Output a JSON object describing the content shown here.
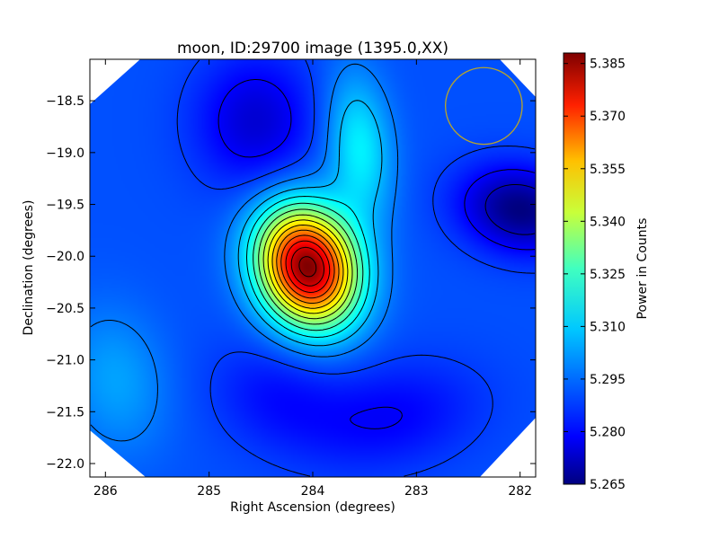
{
  "chart_data": {
    "type": "heatmap",
    "title": "moon, ID:29700 image (1395.0,XX)",
    "xlabel": "Right Ascension (degrees)",
    "ylabel": "Declination (degrees)",
    "xlim": [
      286.15,
      281.85
    ],
    "ylim": [
      -22.13,
      -18.1
    ],
    "x_ticks": [
      286,
      285,
      284,
      283,
      282
    ],
    "x_tick_labels": [
      "286",
      "285",
      "284",
      "283",
      "282"
    ],
    "y_ticks": [
      -18.5,
      -19.0,
      -19.5,
      -20.0,
      -20.5,
      -21.0,
      -21.5,
      -22.0
    ],
    "y_tick_labels": [
      "−18.5",
      "−19.0",
      "−19.5",
      "−20.0",
      "−20.5",
      "−21.0",
      "−21.5",
      "−22.0"
    ],
    "colorbar": {
      "label": "Power in Counts",
      "range": [
        5.265,
        5.388
      ],
      "ticks": [
        5.265,
        5.28,
        5.295,
        5.31,
        5.325,
        5.34,
        5.355,
        5.37,
        5.385
      ],
      "tick_labels": [
        "5.265",
        "5.280",
        "5.295",
        "5.310",
        "5.325",
        "5.340",
        "5.355",
        "5.370",
        "5.385"
      ],
      "colormap": "jet"
    },
    "background_value": 5.29,
    "features": [
      {
        "kind": "peak",
        "ra": 284.05,
        "dec": -20.1,
        "value": 5.388
      },
      {
        "kind": "ridge",
        "ra": 283.55,
        "dec": -18.95,
        "value": 5.31
      },
      {
        "kind": "minimum",
        "ra": 282.0,
        "dec": -19.55,
        "value": 5.265
      },
      {
        "kind": "low",
        "ra": 284.55,
        "dec": -18.7,
        "value": 5.275
      },
      {
        "kind": "low",
        "ra": 283.25,
        "dec": -21.55,
        "value": 5.28
      },
      {
        "kind": "low",
        "ra": 284.35,
        "dec": -21.35,
        "value": 5.282
      },
      {
        "kind": "high",
        "ra": 285.9,
        "dec": -21.2,
        "value": 5.3
      }
    ],
    "overlay_circle": {
      "ra": 282.35,
      "dec": -18.55,
      "radius_deg": 0.37,
      "color": "#b8a52a"
    },
    "grid": false,
    "legend": "none"
  }
}
